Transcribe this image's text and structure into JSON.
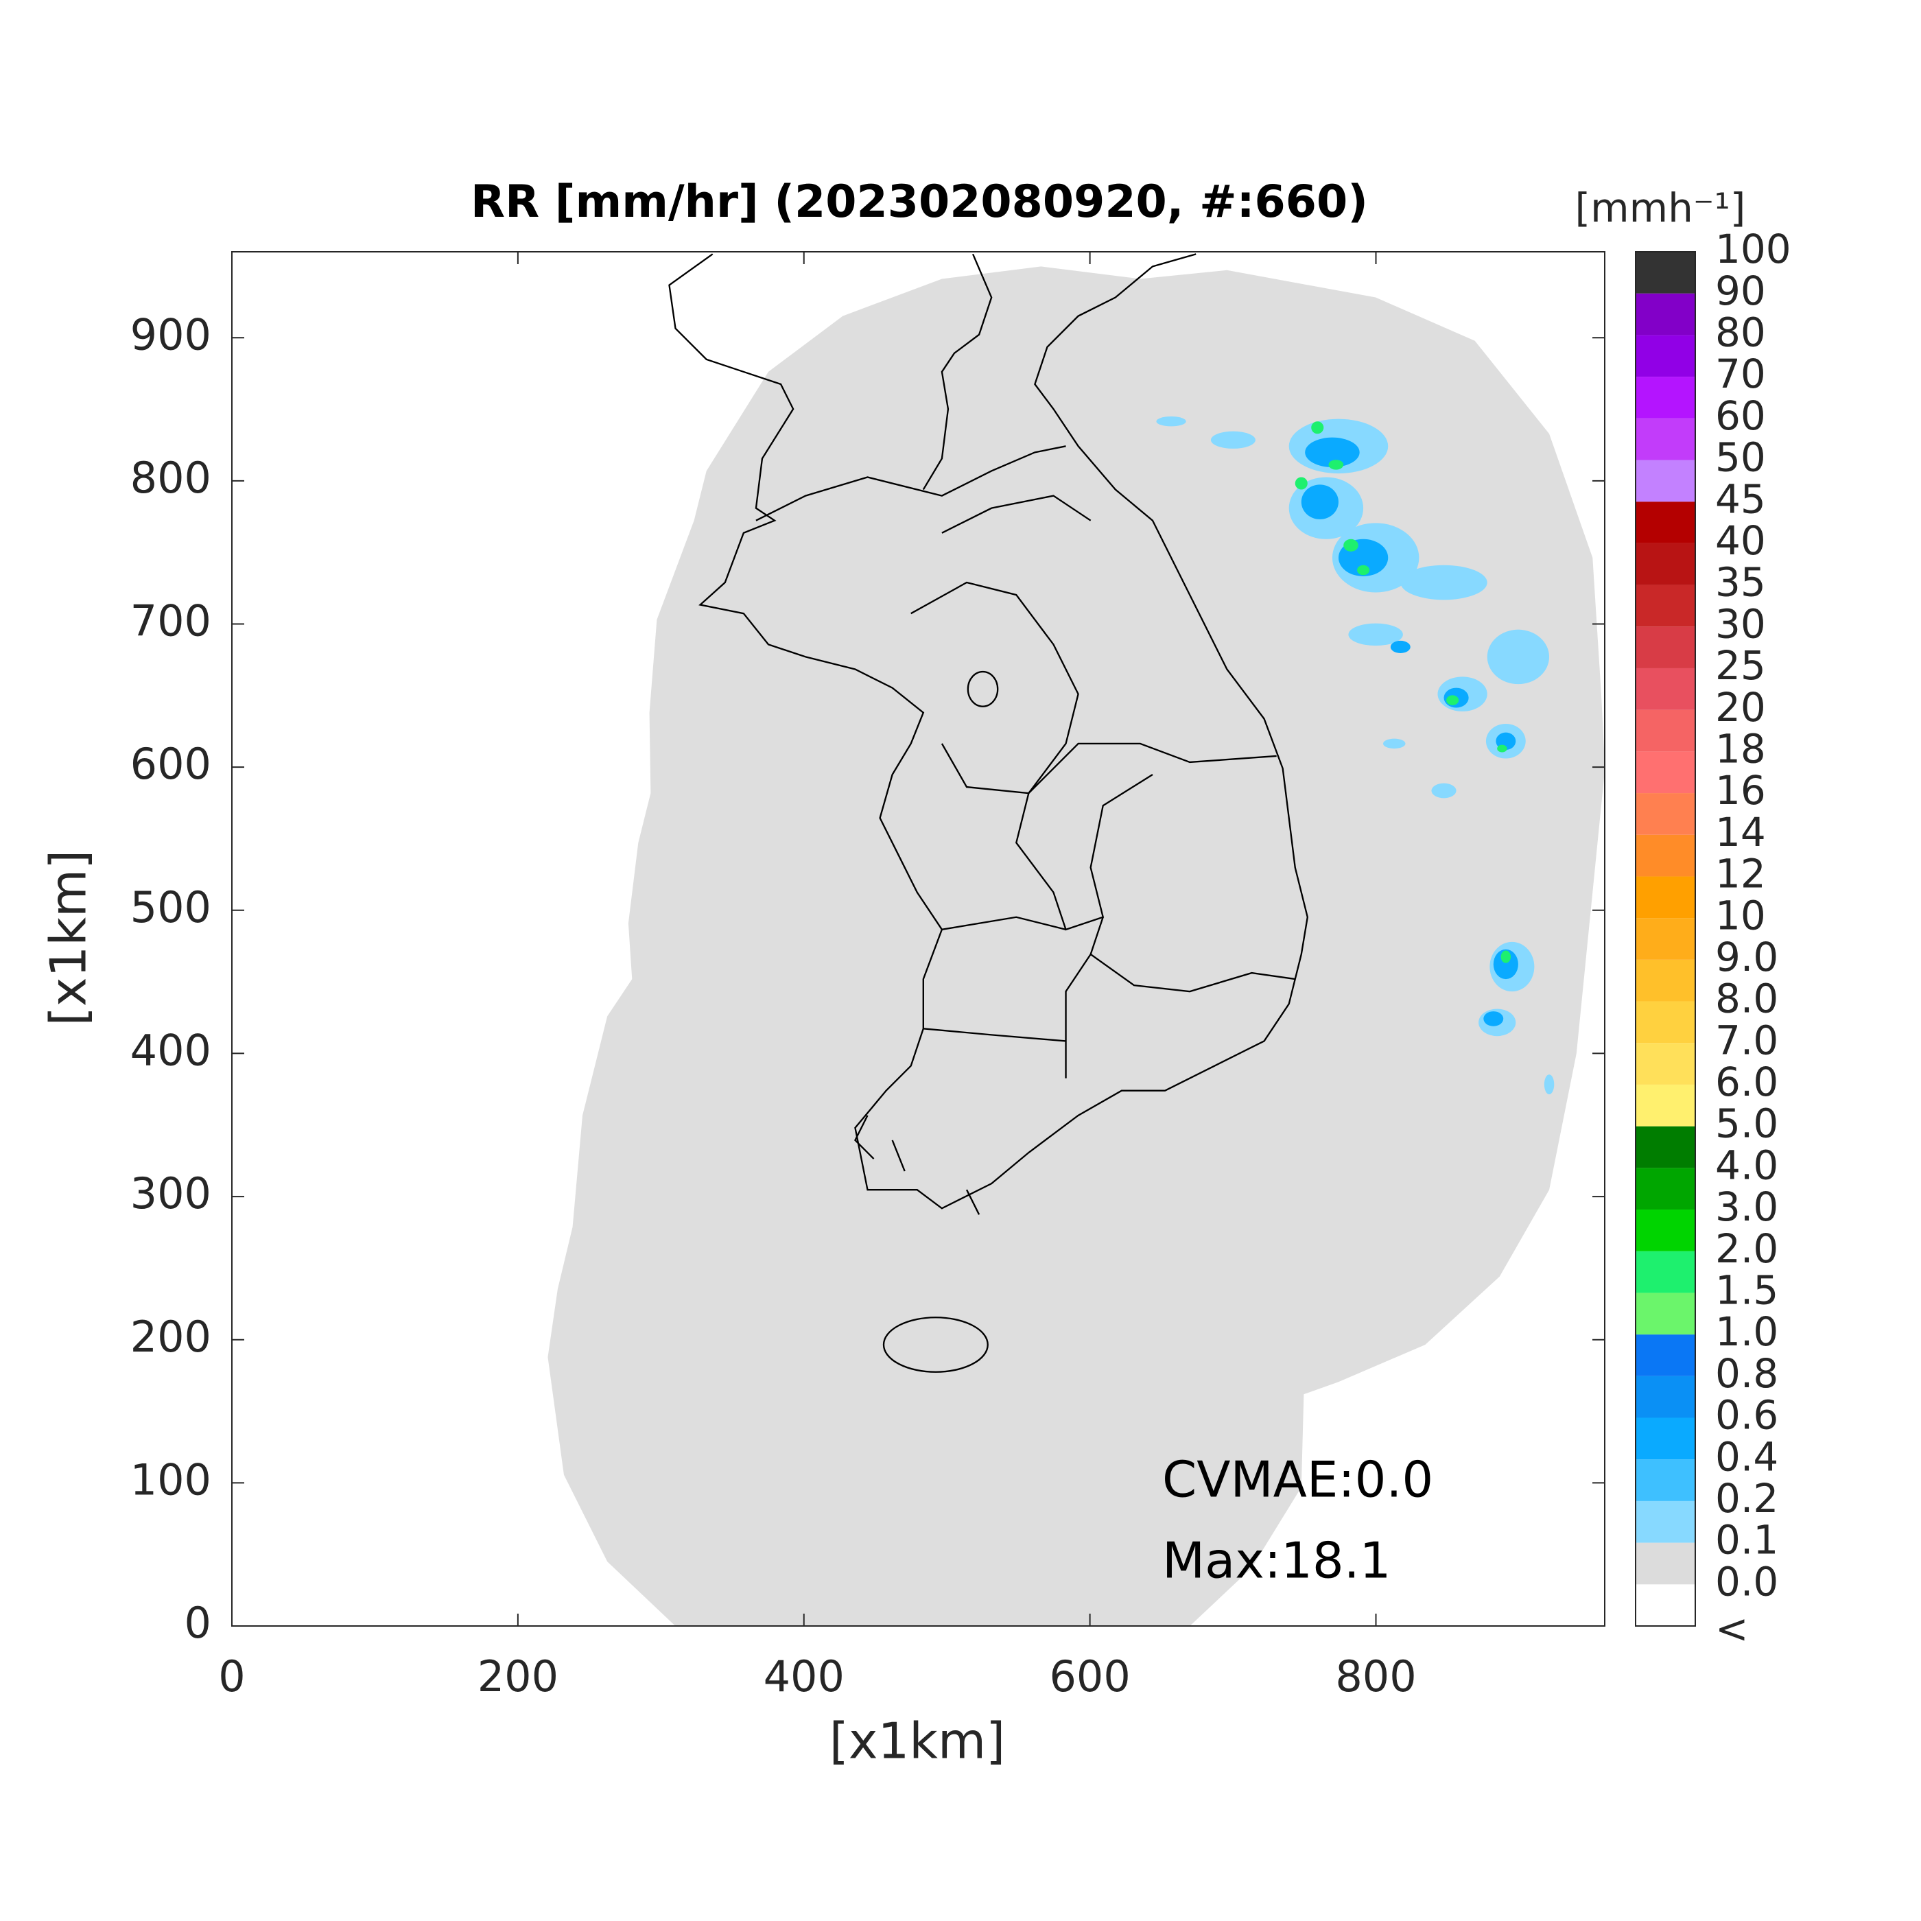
{
  "title": "RR [mm/hr] (202302080920, #:660)",
  "x_axis": {
    "label": "[x1km]",
    "lim": [
      0,
      960
    ],
    "ticks": [
      0,
      200,
      400,
      600,
      800
    ]
  },
  "y_axis": {
    "label": "[x1km]",
    "lim": [
      0,
      960
    ],
    "ticks": [
      0,
      100,
      200,
      300,
      400,
      500,
      600,
      700,
      800,
      900
    ]
  },
  "colorbar": {
    "unit": "[mmh⁻¹]",
    "labels": [
      "<",
      "0.0",
      "0.1",
      "0.2",
      "0.4",
      "0.6",
      "0.8",
      "1.0",
      "1.5",
      "2.0",
      "3.0",
      "4.0",
      "5.0",
      "6.0",
      "7.0",
      "8.0",
      "9.0",
      "10",
      "12",
      "14",
      "16",
      "18",
      "20",
      "25",
      "30",
      "35",
      "40",
      "45",
      "50",
      "60",
      "70",
      "80",
      "90",
      "100"
    ],
    "colors": [
      "#ffffff",
      "#dcdcdc",
      "#87d9ff",
      "#3ec0ff",
      "#0aaaff",
      "#0a90f5",
      "#0a77f5",
      "#6bf56b",
      "#1ef06e",
      "#00d400",
      "#00a600",
      "#007d00",
      "#fff06e",
      "#ffe05a",
      "#ffd13f",
      "#ffc02a",
      "#ffad1a",
      "#ffa000",
      "#ff8c28",
      "#ff8050",
      "#ff7070",
      "#f56464",
      "#e8505f",
      "#d83c46",
      "#c92828",
      "#b81414",
      "#b40000",
      "#c381ff",
      "#c23cfa",
      "#b414ff",
      "#9100e6",
      "#8200c8",
      "#333333"
    ]
  },
  "annotations": [
    "CVMAE:0.0",
    "Max:18.1"
  ]
}
